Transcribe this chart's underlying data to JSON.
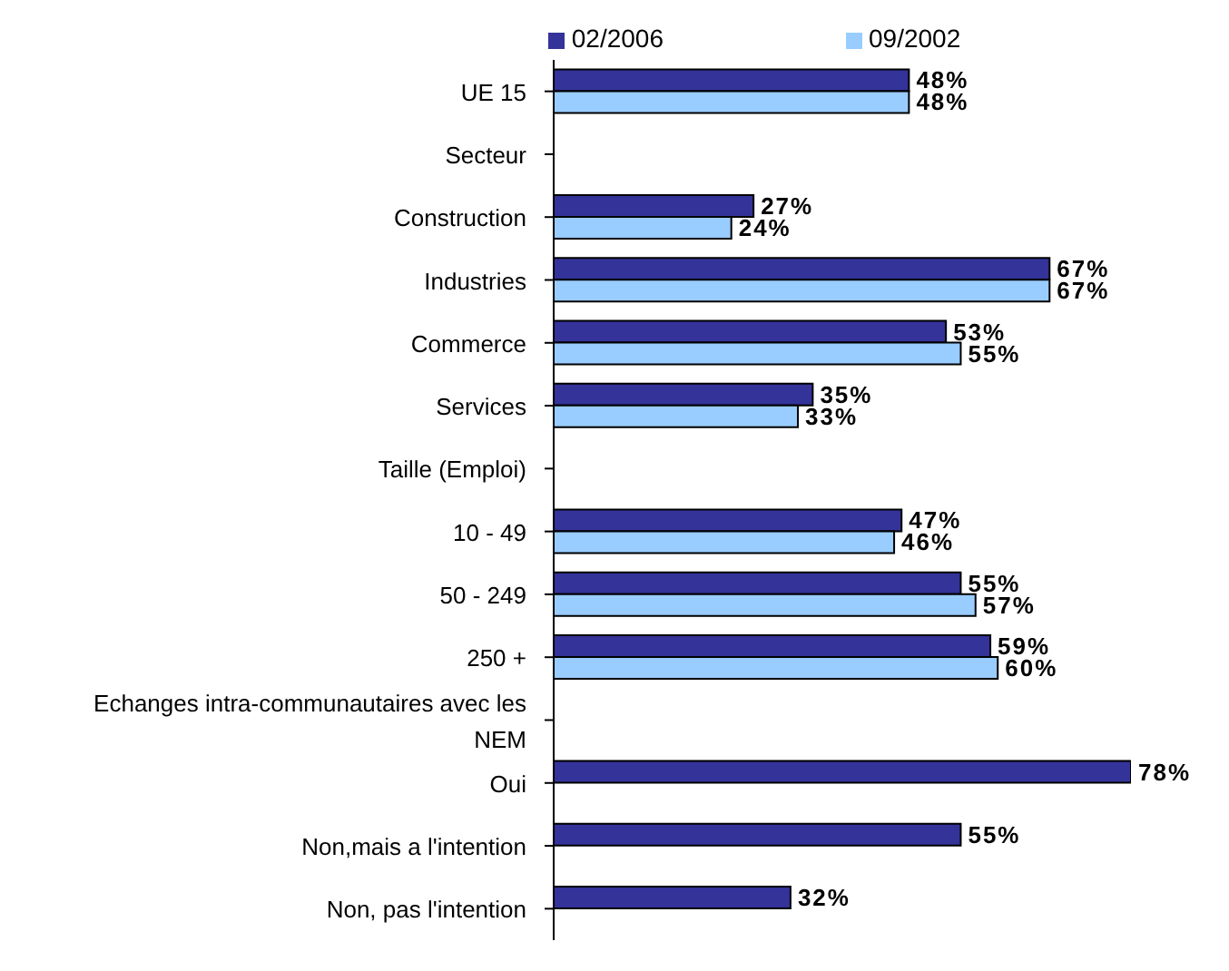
{
  "chart_data": {
    "type": "bar",
    "orientation": "horizontal",
    "legend": "top",
    "grid": false,
    "categories": [
      "UE 15",
      "Secteur",
      "Construction",
      "Industries",
      "Commerce",
      "Services",
      "Taille (Emploi)",
      "10 - 49",
      "50 - 249",
      "250 +",
      "Echanges intra-communautaires avec les NEM",
      "Oui",
      "Non,mais a l'intention",
      "Non, pas l'intention"
    ],
    "series": [
      {
        "name": "02/2006",
        "color": "#333399",
        "values": [
          48,
          null,
          27,
          67,
          53,
          35,
          null,
          47,
          55,
          59,
          null,
          78,
          55,
          32
        ],
        "value_labels": [
          "48%",
          null,
          "27%",
          "67%",
          "53%",
          "35%",
          null,
          "47%",
          "55%",
          "59%",
          null,
          "78%",
          "55%",
          "32%"
        ]
      },
      {
        "name": "09/2002",
        "color": "#99ccff",
        "values": [
          48,
          null,
          24,
          67,
          55,
          33,
          null,
          46,
          57,
          60,
          null,
          null,
          null,
          null
        ],
        "value_labels": [
          "48%",
          null,
          "24%",
          "67%",
          "55%",
          "33%",
          null,
          "46%",
          "57%",
          "60%",
          null,
          null,
          null,
          null
        ]
      }
    ]
  }
}
